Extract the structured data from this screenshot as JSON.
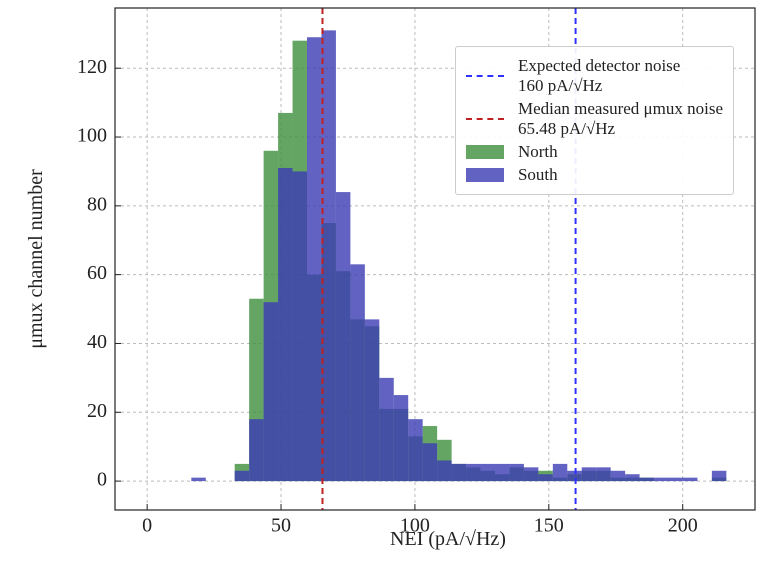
{
  "chart_data": {
    "type": "histogram",
    "xlabel": "NEI (pA/√Hz)",
    "ylabel": "μmux channel number",
    "bins": [
      16.5,
      21.9,
      27.3,
      32.7,
      38.1,
      43.5,
      48.9,
      54.3,
      59.7,
      65.1,
      70.5,
      75.9,
      81.3,
      86.7,
      92.1,
      97.5,
      102.9,
      108.3,
      113.7,
      119.1,
      124.5,
      129.9,
      135.3,
      140.7,
      146.1,
      151.5,
      156.9,
      162.3,
      167.7,
      173.1,
      178.5,
      183.9,
      189.3,
      194.7,
      200.1,
      205.5,
      210.9,
      216.3,
      221.7
    ],
    "series": [
      {
        "name": "North",
        "color": "#3d8f3d",
        "values": [
          0,
          0,
          0,
          5,
          53,
          96,
          107,
          128,
          60,
          75,
          61,
          47,
          45,
          21,
          21,
          13,
          16,
          12,
          5,
          4,
          3,
          2,
          4,
          3,
          3,
          1,
          2,
          3,
          3,
          1,
          1,
          1,
          0,
          0,
          0,
          0,
          1,
          0
        ]
      },
      {
        "name": "South",
        "color": "#3b3bb3",
        "values": [
          1,
          0,
          0,
          3,
          18,
          52,
          91,
          90,
          129,
          131,
          84,
          63,
          47,
          30,
          25,
          18,
          11,
          6,
          5,
          5,
          5,
          5,
          5,
          4,
          2,
          5,
          3,
          4,
          4,
          3,
          2,
          1,
          1,
          1,
          1,
          0,
          3,
          0
        ]
      }
    ],
    "vlines": [
      {
        "name": "Expected detector noise\n160 pA/√Hz",
        "color": "#3030ff",
        "value": 160
      },
      {
        "name": "Median measured μmux noise\n65.48 pA/√Hz",
        "color": "#c02020",
        "value": 65.48
      }
    ],
    "xlim": [
      -12,
      227
    ],
    "ylim": [
      -8.4,
      137.5
    ],
    "xticks": [
      0,
      50,
      100,
      150,
      200
    ],
    "yticks": [
      0,
      20,
      40,
      60,
      80,
      100,
      120
    ],
    "grid": true,
    "legend": "upper right"
  }
}
